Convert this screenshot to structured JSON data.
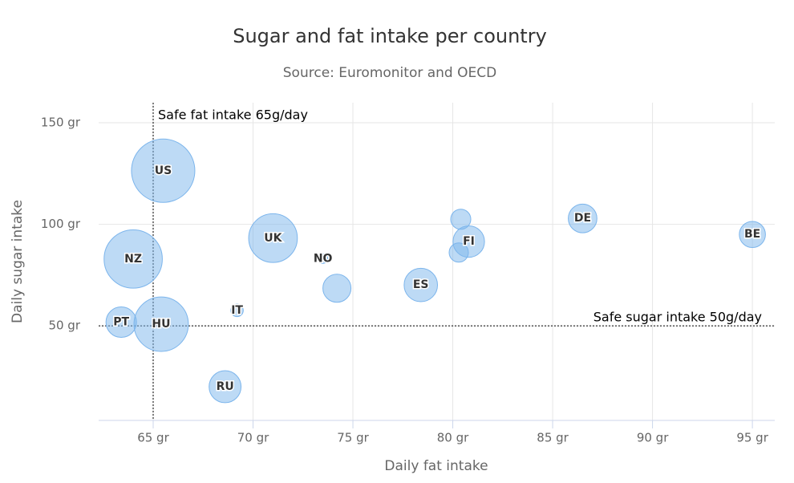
{
  "chart_data": {
    "type": "bubble",
    "title": "Sugar and fat intake per country",
    "subtitle": "Source: Euromonitor and OECD",
    "x_label": "Daily fat intake",
    "y_label": "Daily sugar intake",
    "x": [
      95,
      86.5,
      80.8,
      80.4,
      80.3,
      78.4,
      74.2,
      73.5,
      71,
      69.2,
      68.6,
      65.5,
      65.4,
      63.4,
      64
    ],
    "values": [
      95,
      102.9,
      91.5,
      102.5,
      86.1,
      70.1,
      68.5,
      83.1,
      93.2,
      57.6,
      20,
      126.4,
      50.8,
      51.8,
      82.9
    ],
    "sizes": [
      13.8,
      14.7,
      15.8,
      12,
      11.8,
      16.6,
      14.5,
      10,
      24.7,
      10.4,
      16,
      35.3,
      28.5,
      15.4,
      31.3
    ],
    "labels": [
      "BE",
      "DE",
      "FI",
      null,
      null,
      "ES",
      null,
      "NO",
      "UK",
      "IT",
      "RU",
      "US",
      "HU",
      "PT",
      "NZ"
    ],
    "color": "#7cb5ec",
    "xlim": [
      62.27,
      96.12
    ],
    "ylim": [
      3.4,
      159.9
    ],
    "xticks": [
      {
        "value": 65,
        "label": "65 gr"
      },
      {
        "value": 70,
        "label": "70 gr"
      },
      {
        "value": 75,
        "label": "75 gr"
      },
      {
        "value": 80,
        "label": "80 gr"
      },
      {
        "value": 85,
        "label": "85 gr"
      },
      {
        "value": 90,
        "label": "90 gr"
      },
      {
        "value": 95,
        "label": "95 gr"
      }
    ],
    "yticks": [
      {
        "value": 50,
        "label": "50 gr"
      },
      {
        "value": 100,
        "label": "100 gr"
      },
      {
        "value": 150,
        "label": "150 gr"
      }
    ],
    "grid": true,
    "x_plot_line": {
      "value": 65,
      "label": "Safe fat intake 65g/day"
    },
    "y_plot_line": {
      "value": 50,
      "label": "Safe sugar intake 50g/day"
    }
  }
}
